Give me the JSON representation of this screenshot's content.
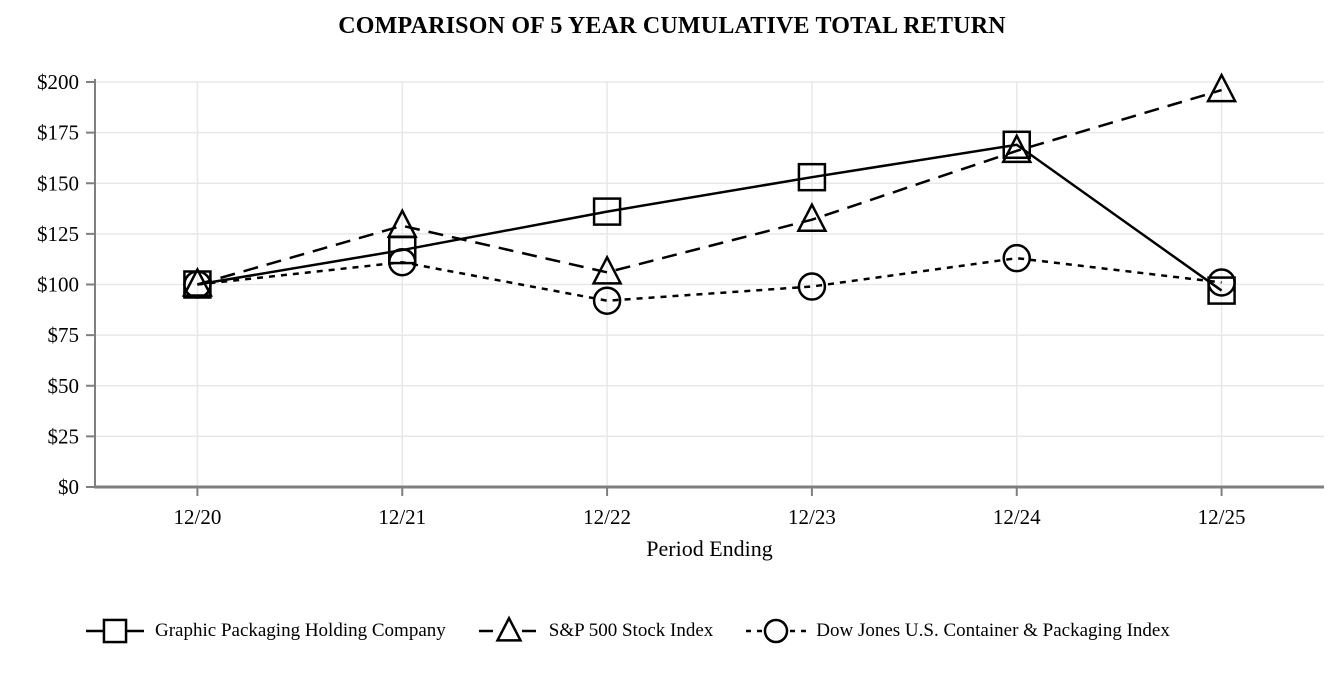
{
  "chart_data": {
    "type": "line",
    "title": "COMPARISON OF 5 YEAR CUMULATIVE TOTAL RETURN",
    "xlabel": "Period Ending",
    "ylabel": "",
    "categories": [
      "12/20",
      "12/21",
      "12/22",
      "12/23",
      "12/24",
      "12/25"
    ],
    "y_ticks": [
      "$0",
      "$25",
      "$50",
      "$75",
      "$100",
      "$125",
      "$150",
      "$175",
      "$200"
    ],
    "ylim": [
      0,
      200
    ],
    "y_tick_step": 25,
    "grid": true,
    "legend_position": "bottom",
    "series": [
      {
        "name": "Graphic Packaging Holding Company",
        "marker": "square",
        "line_style": "solid",
        "color": "#000000",
        "values": [
          100,
          117,
          136,
          153,
          169,
          97
        ]
      },
      {
        "name": "S&P 500 Stock Index",
        "marker": "triangle",
        "line_style": "long-dash",
        "color": "#000000",
        "values": [
          100,
          129,
          106,
          132,
          166,
          196
        ]
      },
      {
        "name": "Dow Jones U.S. Container & Packaging Index",
        "marker": "circle",
        "line_style": "short-dash",
        "color": "#000000",
        "values": [
          100,
          111,
          92,
          99,
          113,
          101
        ]
      }
    ],
    "axis_color": "#7f7f7f",
    "grid_color": "#e8e8e8"
  }
}
